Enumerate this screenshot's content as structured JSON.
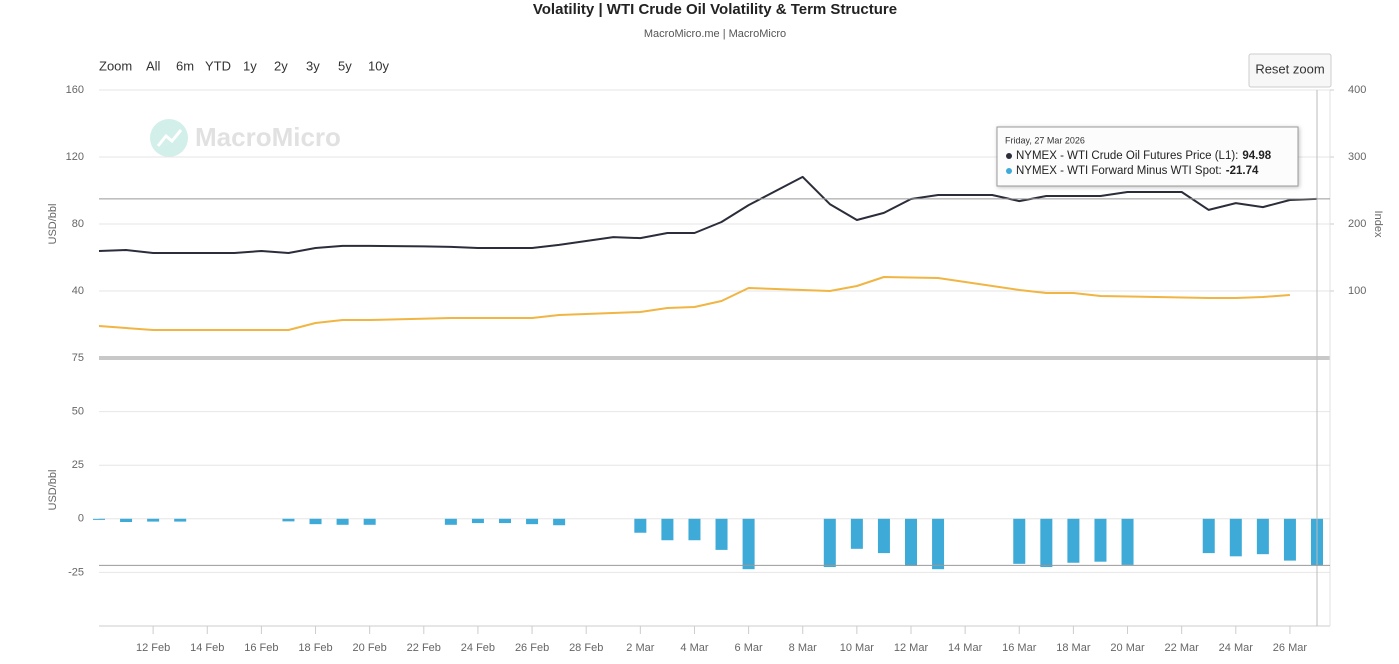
{
  "toolbar": {
    "zoom_label": "Zoom",
    "ranges": [
      "All",
      "6m",
      "YTD",
      "1y",
      "2y",
      "3y",
      "5y",
      "10y"
    ],
    "reset": "Reset zoom"
  },
  "watermark": "MacroMicro",
  "tooltip": {
    "date": "Friday, 27 Mar 2026",
    "rows": [
      {
        "label": "NYMEX - WTI Crude Oil Futures Price (L1):"
      },
      {
        "label": "NYMEX - WTI Forward Minus WTI Spot:"
      }
    ]
  },
  "chart_data": [
    {
      "type": "line",
      "title": "Volatility | WTI Crude Oil Volatility & Term Structure",
      "subtitle": "MacroMicro.me | MacroMicro",
      "y_label": "USD/bbl",
      "y2_label": "Index",
      "xlim": [
        "2026-02-10",
        "2026-03-27"
      ],
      "ylim": [
        0,
        160
      ],
      "yticks": [
        40,
        80,
        120,
        160
      ],
      "y2lim": [
        0,
        400
      ],
      "y2ticks": [
        100,
        200,
        300,
        400
      ],
      "grid": true,
      "series": [
        {
          "color": "#2b2d3a",
          "x": [
            "2026-02-10",
            "2026-02-11",
            "2026-02-12",
            "2026-02-13",
            "2026-02-15",
            "2026-02-16",
            "2026-02-17",
            "2026-02-18",
            "2026-02-19",
            "2026-02-20",
            "2026-02-22",
            "2026-02-23",
            "2026-02-24",
            "2026-02-26",
            "2026-02-27",
            "2026-03-01",
            "2026-03-02",
            "2026-03-03",
            "2026-03-04",
            "2026-03-05",
            "2026-03-06",
            "2026-03-08",
            "2026-03-09",
            "2026-03-10",
            "2026-03-11",
            "2026-03-12",
            "2026-03-13",
            "2026-03-15",
            "2026-03-16",
            "2026-03-17",
            "2026-03-19",
            "2026-03-20",
            "2026-03-22",
            "2026-03-23",
            "2026-03-24",
            "2026-03-25",
            "2026-03-26",
            "2026-03-27"
          ],
          "values": [
            63.9,
            64.5,
            62.7,
            62.7,
            62.7,
            63.9,
            62.7,
            65.7,
            66.9,
            66.9,
            66.6,
            66.3,
            65.7,
            65.7,
            67.5,
            72.2,
            71.6,
            74.6,
            74.6,
            81.2,
            91.3,
            108.1,
            91.9,
            82.4,
            86.6,
            94.9,
            97.3,
            97.3,
            93.7,
            96.7,
            96.7,
            99.1,
            99.1,
            88.4,
            92.5,
            90.1,
            94.3,
            94.98
          ]
        },
        {
          "color": "#f0b542",
          "axis": "y2",
          "x": [
            "2026-02-10",
            "2026-02-11",
            "2026-02-12",
            "2026-02-17",
            "2026-02-18",
            "2026-02-19",
            "2026-02-20",
            "2026-02-23",
            "2026-02-26",
            "2026-02-27",
            "2026-03-02",
            "2026-03-03",
            "2026-03-04",
            "2026-03-05",
            "2026-03-06",
            "2026-03-09",
            "2026-03-10",
            "2026-03-11",
            "2026-03-13",
            "2026-03-16",
            "2026-03-17",
            "2026-03-18",
            "2026-03-19",
            "2026-03-23",
            "2026-03-24",
            "2026-03-25",
            "2026-03-26"
          ],
          "values": [
            47.8,
            44.8,
            41.8,
            41.8,
            52.2,
            56.7,
            56.7,
            59.7,
            59.7,
            64.2,
            68.7,
            74.6,
            76.1,
            85.1,
            104.5,
            100,
            107.5,
            120.9,
            119.4,
            101.5,
            97,
            97,
            92.5,
            89.6,
            89.6,
            91,
            94
          ]
        }
      ]
    },
    {
      "type": "bar",
      "y_label": "USD/bbl",
      "xlim": [
        "2026-02-10",
        "2026-03-27"
      ],
      "ylim": [
        -50,
        75
      ],
      "yticks": [
        -25,
        0,
        25,
        50,
        75
      ],
      "grid": true,
      "xticks": [
        {
          "value": "2026-02-12",
          "label": "12 Feb"
        },
        {
          "value": "2026-02-14",
          "label": "14 Feb"
        },
        {
          "value": "2026-02-16",
          "label": "16 Feb"
        },
        {
          "value": "2026-02-18",
          "label": "18 Feb"
        },
        {
          "value": "2026-02-20",
          "label": "20 Feb"
        },
        {
          "value": "2026-02-22",
          "label": "22 Feb"
        },
        {
          "value": "2026-02-24",
          "label": "24 Feb"
        },
        {
          "value": "2026-02-26",
          "label": "26 Feb"
        },
        {
          "value": "2026-02-28",
          "label": "28 Feb"
        },
        {
          "value": "2026-03-02",
          "label": "2 Mar"
        },
        {
          "value": "2026-03-04",
          "label": "4 Mar"
        },
        {
          "value": "2026-03-06",
          "label": "6 Mar"
        },
        {
          "value": "2026-03-08",
          "label": "8 Mar"
        },
        {
          "value": "2026-03-10",
          "label": "10 Mar"
        },
        {
          "value": "2026-03-12",
          "label": "12 Mar"
        },
        {
          "value": "2026-03-14",
          "label": "14 Mar"
        },
        {
          "value": "2026-03-16",
          "label": "16 Mar"
        },
        {
          "value": "2026-03-18",
          "label": "18 Mar"
        },
        {
          "value": "2026-03-20",
          "label": "20 Mar"
        },
        {
          "value": "2026-03-22",
          "label": "22 Mar"
        },
        {
          "value": "2026-03-24",
          "label": "24 Mar"
        },
        {
          "value": "2026-03-26",
          "label": "26 Mar"
        }
      ],
      "x": [
        "2026-02-10",
        "2026-02-11",
        "2026-02-12",
        "2026-02-13",
        "2026-02-17",
        "2026-02-18",
        "2026-02-19",
        "2026-02-20",
        "2026-02-23",
        "2026-02-24",
        "2026-02-25",
        "2026-02-26",
        "2026-02-27",
        "2026-03-02",
        "2026-03-03",
        "2026-03-04",
        "2026-03-05",
        "2026-03-06",
        "2026-03-09",
        "2026-03-10",
        "2026-03-11",
        "2026-03-12",
        "2026-03-13",
        "2026-03-16",
        "2026-03-17",
        "2026-03-18",
        "2026-03-19",
        "2026-03-20",
        "2026-03-23",
        "2026-03-24",
        "2026-03-25",
        "2026-03-26",
        "2026-03-27"
      ],
      "series": [
        {
          "color": "#3daad8",
          "values": [
            -0.5,
            -1.5,
            -1.3,
            -1.3,
            -1.2,
            -2.5,
            -2.8,
            -2.8,
            -2.8,
            -2,
            -2,
            -2.5,
            -3,
            -6.5,
            -10,
            -10,
            -14.5,
            -23.5,
            -22.5,
            -14,
            -16,
            -22,
            -23.5,
            -21,
            -22.5,
            -20.5,
            -20,
            -21.5,
            -16,
            -17.5,
            -16.5,
            -19.5,
            -21.74
          ]
        }
      ]
    }
  ]
}
